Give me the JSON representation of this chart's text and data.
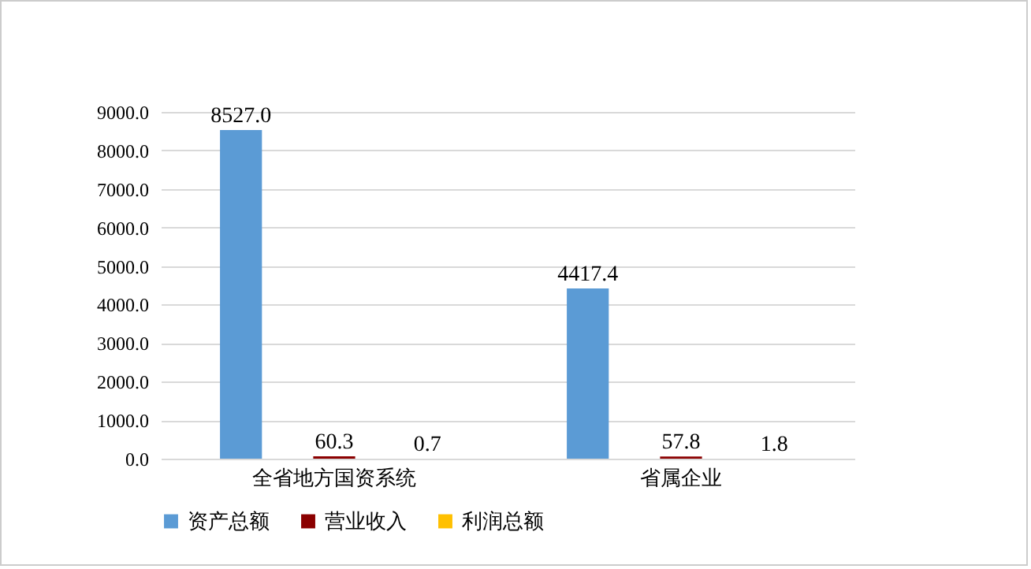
{
  "chart_data": {
    "type": "bar",
    "categories": [
      "全省地方国资系统",
      "省属企业"
    ],
    "series": [
      {
        "name": "资产总额",
        "color": "#5b9bd5",
        "values": [
          8527.0,
          4417.4
        ],
        "value_labels": [
          "8527.0",
          "4417.4"
        ]
      },
      {
        "name": "营业收入",
        "color": "#8b0000",
        "values": [
          60.3,
          57.8
        ],
        "value_labels": [
          "60.3",
          "57.8"
        ]
      },
      {
        "name": "利润总额",
        "color": "#ffc000",
        "values": [
          0.7,
          1.8
        ],
        "value_labels": [
          "0.7",
          "1.8"
        ]
      }
    ],
    "ylim": [
      0,
      9000
    ],
    "yticks": [
      {
        "value": 0,
        "label": "0.0"
      },
      {
        "value": 1000,
        "label": "1000.0"
      },
      {
        "value": 2000,
        "label": "2000.0"
      },
      {
        "value": 3000,
        "label": "3000.0"
      },
      {
        "value": 4000,
        "label": "4000.0"
      },
      {
        "value": 5000,
        "label": "5000.0"
      },
      {
        "value": 6000,
        "label": "6000.0"
      },
      {
        "value": 7000,
        "label": "7000.0"
      },
      {
        "value": 8000,
        "label": "8000.0"
      },
      {
        "value": 9000,
        "label": "9000.0"
      }
    ],
    "grid": "y",
    "legend": "bottom"
  }
}
